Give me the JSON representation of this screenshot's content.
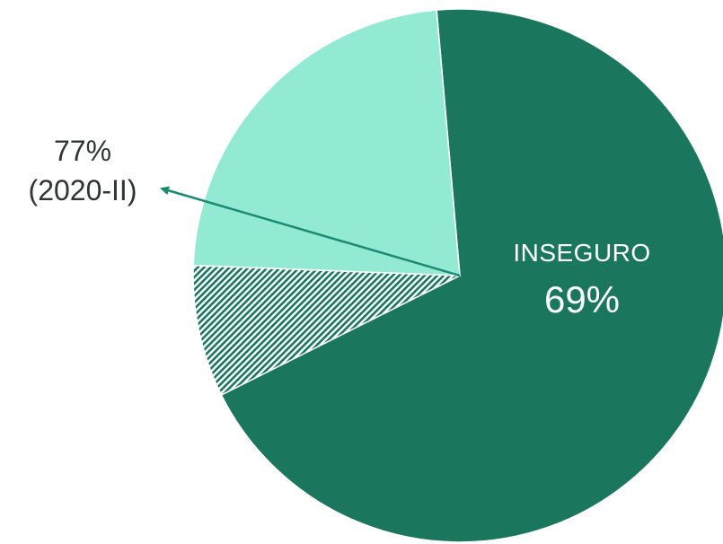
{
  "chart_data": {
    "type": "pie",
    "slices": [
      {
        "label": "INSEGURO",
        "value": 69,
        "color": "#1a775e"
      },
      {
        "label": "",
        "value": 8,
        "color": "#1a775e",
        "pattern": "diagonal-hatch"
      },
      {
        "label": "",
        "value": 23,
        "color": "#92ead3"
      }
    ],
    "inside_label": {
      "name": "INSEGURO",
      "value": "69%"
    },
    "annotation": {
      "value": "77%",
      "period": "(2020-II)"
    }
  }
}
